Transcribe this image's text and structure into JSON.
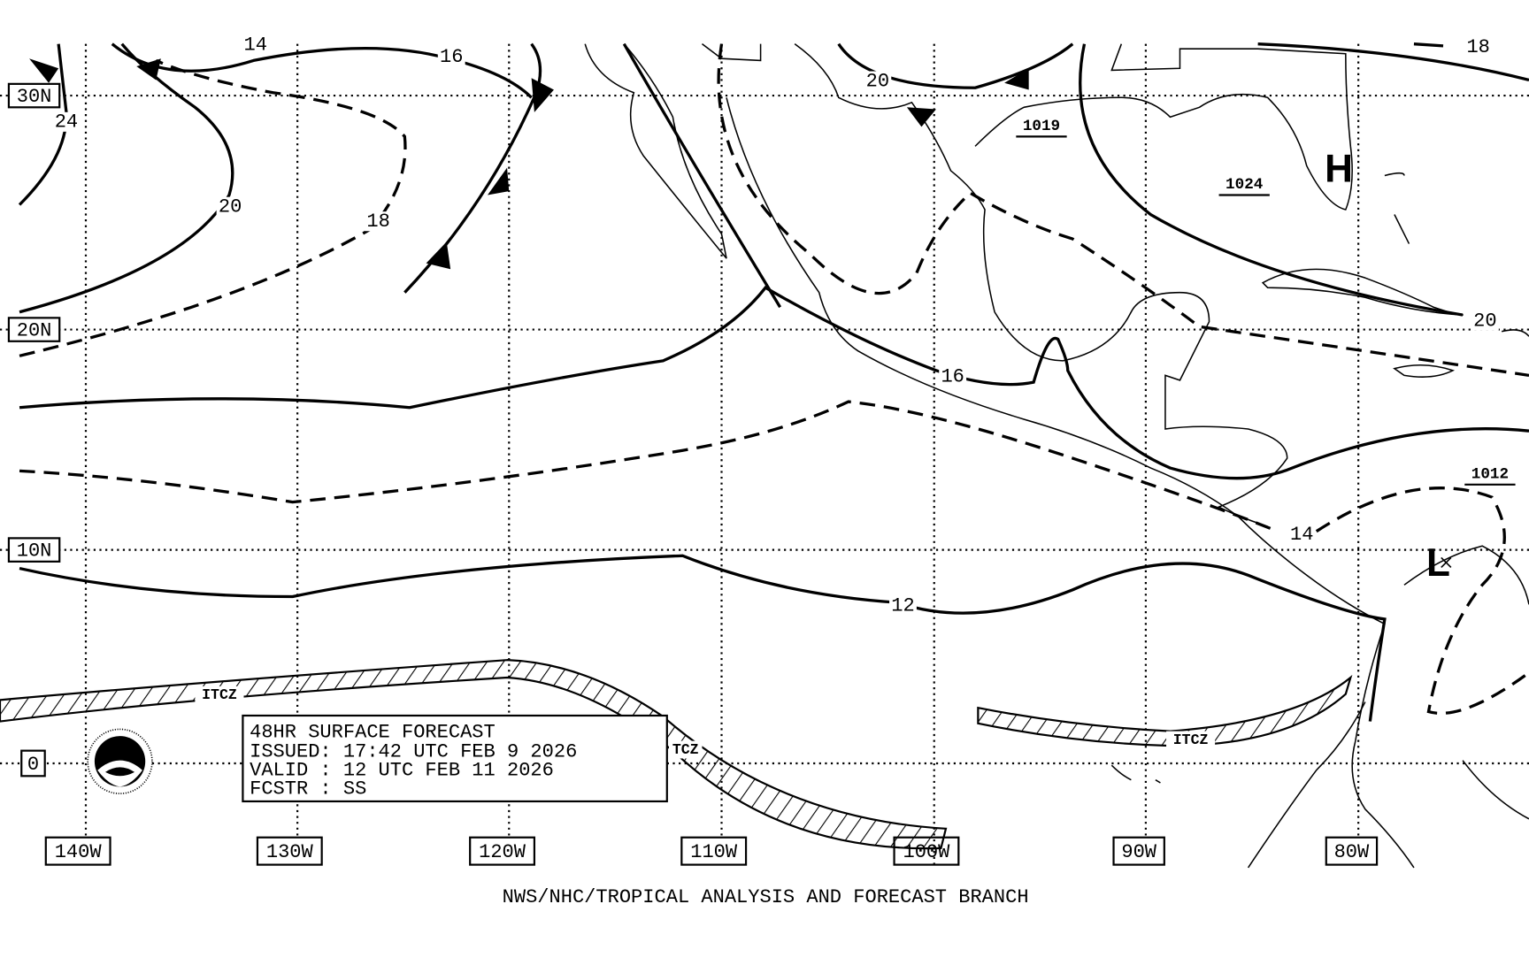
{
  "latitude_labels": [
    "30N",
    "20N",
    "10N",
    "0"
  ],
  "longitude_labels": [
    "140W",
    "130W",
    "120W",
    "110W",
    "100W",
    "90W",
    "80W"
  ],
  "isobar_labels": [
    "14",
    "16",
    "24",
    "20",
    "18",
    "20",
    "16",
    "12",
    "14",
    "20",
    "18"
  ],
  "pressure_centers": [
    "1019",
    "1024",
    "1012"
  ],
  "high_label": "H",
  "low_label": "L",
  "itcz_labels": [
    "ITCZ",
    "TCZ",
    "ITCZ"
  ],
  "forecast_box": {
    "lines": [
      "48HR SURFACE FORECAST",
      "ISSUED: 17:42 UTC FEB 9 2026",
      "VALID : 12 UTC FEB 11 2026",
      "FCSTR : SS"
    ]
  },
  "footer": "NWS/NHC/TROPICAL ANALYSIS AND FORECAST BRANCH"
}
